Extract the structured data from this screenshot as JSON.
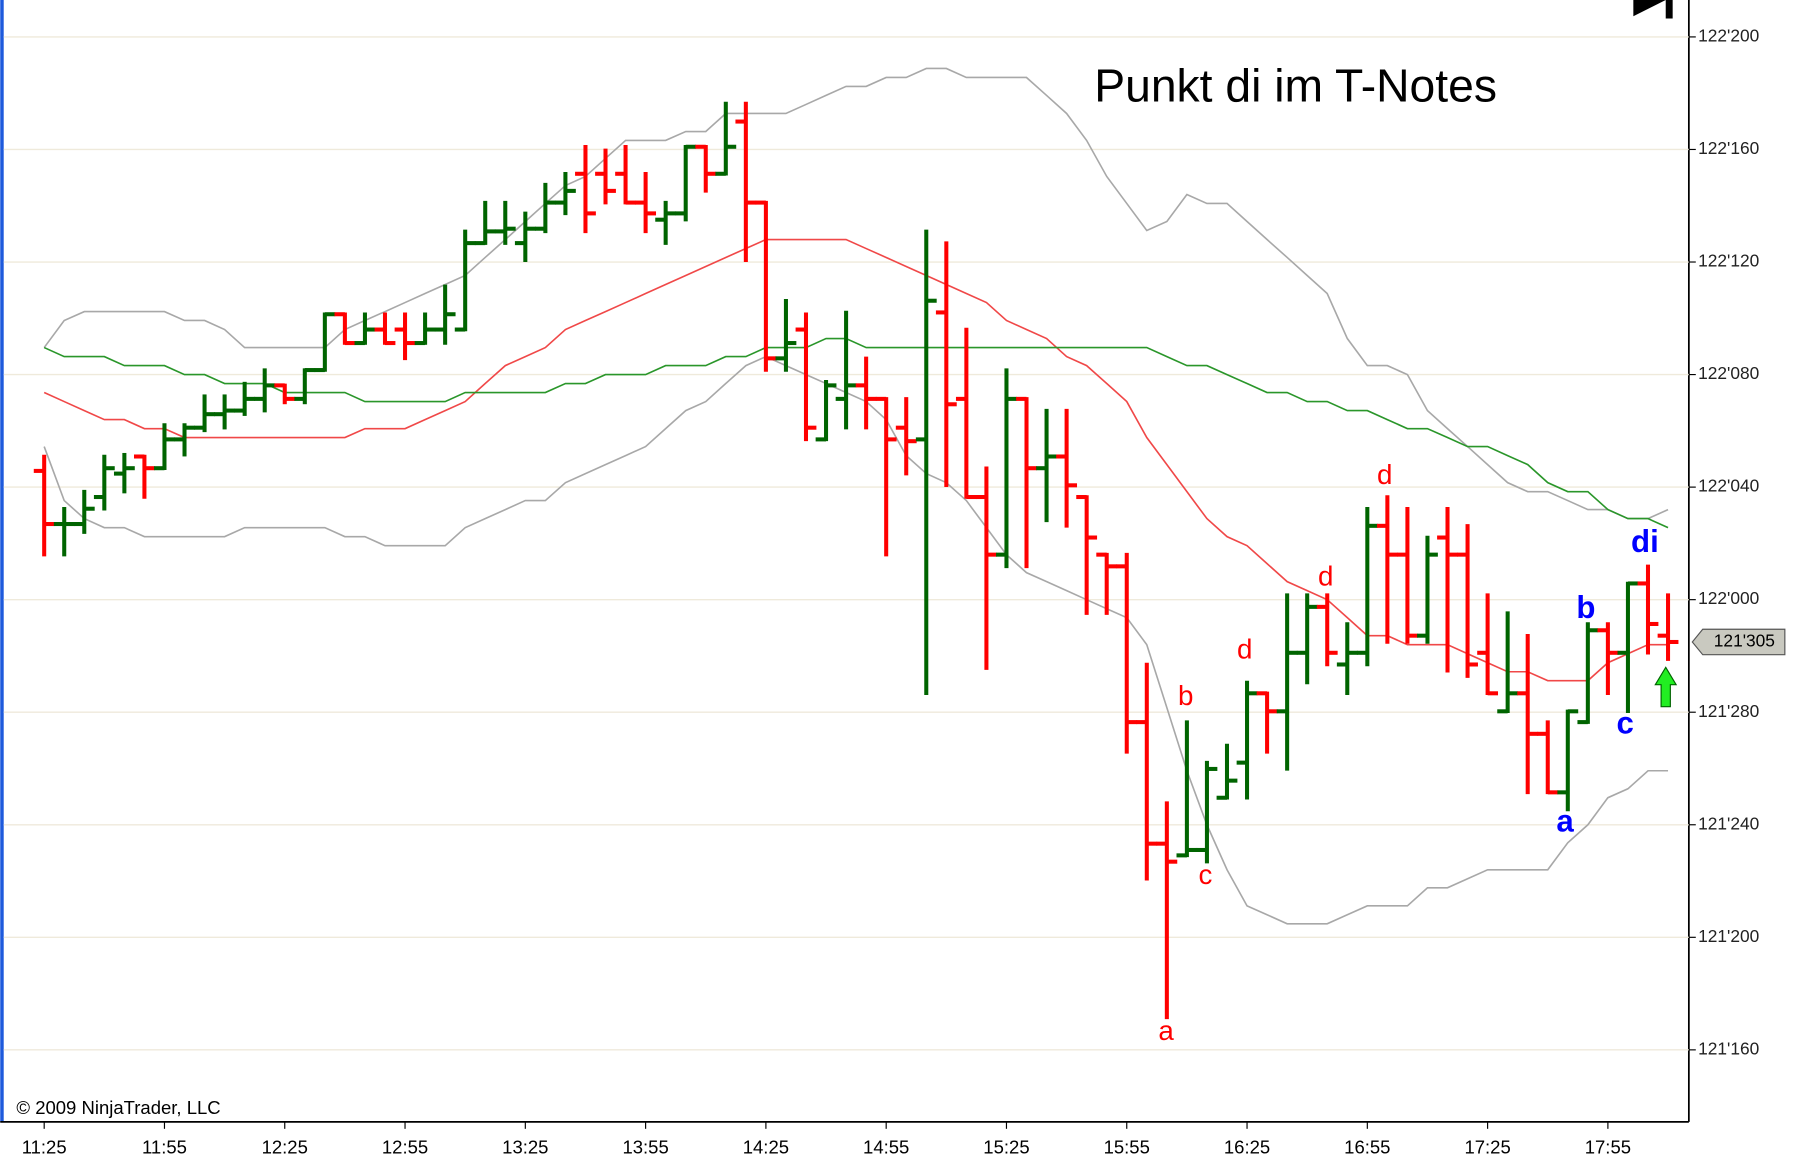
{
  "chart_data": {
    "type": "ohlc",
    "title": "Punkt di im T-Notes",
    "copyright": "© 2009 NinjaTrader, LLC",
    "up_color": "#006400",
    "down_color": "#ff0000",
    "grid": true,
    "ylim": [
      121.42,
      122.666
    ],
    "yticks": [
      {
        "value": 122.625,
        "label": "122'200"
      },
      {
        "value": 122.5,
        "label": "122'160"
      },
      {
        "value": 122.375,
        "label": "122'120"
      },
      {
        "value": 122.25,
        "label": "122'080"
      },
      {
        "value": 122.125,
        "label": "122'040"
      },
      {
        "value": 122,
        "label": "122'000"
      },
      {
        "value": 121.875,
        "label": "121'280"
      },
      {
        "value": 121.75,
        "label": "121'240"
      },
      {
        "value": 121.625,
        "label": "121'200"
      },
      {
        "value": 121.5,
        "label": "121'160"
      }
    ],
    "last_price": {
      "value": 121.953,
      "label": "121'305"
    },
    "categories": [
      "11:25",
      null,
      null,
      null,
      null,
      null,
      "11:55",
      null,
      null,
      null,
      null,
      null,
      "12:25",
      null,
      null,
      null,
      null,
      null,
      "12:55",
      null,
      null,
      null,
      null,
      null,
      "13:25",
      null,
      null,
      null,
      null,
      null,
      "13:55",
      null,
      null,
      null,
      null,
      null,
      "14:25",
      null,
      null,
      null,
      null,
      null,
      "14:55",
      null,
      null,
      null,
      null,
      null,
      "15:25",
      null,
      null,
      null,
      null,
      null,
      "15:55",
      null,
      null,
      null,
      null,
      null,
      "16:25",
      null,
      null,
      null,
      null,
      null,
      "16:55",
      null,
      null,
      null,
      null,
      null,
      "17:25",
      null,
      null,
      null,
      null,
      null,
      "17:55",
      null,
      null,
      null
    ],
    "ohlc": {
      "open": [
        122.143,
        122.084,
        122.084,
        122.114,
        122.14,
        122.159,
        122.146,
        122.178,
        122.191,
        122.206,
        122.21,
        122.223,
        122.238,
        122.223,
        122.255,
        122.317,
        122.285,
        122.3,
        122.3,
        122.285,
        122.3,
        122.3,
        122.396,
        122.409,
        122.396,
        122.412,
        122.441,
        122.473,
        122.473,
        122.473,
        122.441,
        122.422,
        122.429,
        122.503,
        122.473,
        122.531,
        122.441,
        122.268,
        122.3,
        122.178,
        122.223,
        122.238,
        122.223,
        122.191,
        122.178,
        122.319,
        122.223,
        122.114,
        122.05,
        122.223,
        122.146,
        122.159,
        122.114,
        122.05,
        122.037,
        121.864,
        121.729,
        121.716,
        121.722,
        121.78,
        121.819,
        121.896,
        121.876,
        121.941,
        121.992,
        121.928,
        121.941,
        122.082,
        122.05,
        121.96,
        122.069,
        122.05,
        121.941,
        121.876,
        121.896,
        121.851,
        121.786,
        121.864,
        121.966,
        121.941,
        122.018,
        121.96
      ],
      "high": [
        122.159,
        122.101,
        122.12,
        122.159,
        122.161,
        122.159,
        122.194,
        122.194,
        122.226,
        122.226,
        122.24,
        122.255,
        122.238,
        122.255,
        122.317,
        122.317,
        122.317,
        122.317,
        122.317,
        122.317,
        122.348,
        122.409,
        122.441,
        122.441,
        122.429,
        122.461,
        122.473,
        122.503,
        122.499,
        122.503,
        122.473,
        122.441,
        122.503,
        122.503,
        122.551,
        122.551,
        122.441,
        122.332,
        122.317,
        122.242,
        122.319,
        122.268,
        122.223,
        122.223,
        122.409,
        122.396,
        122.3,
        122.146,
        122.255,
        122.223,
        122.21,
        122.21,
        122.114,
        122.05,
        122.05,
        121.928,
        121.774,
        121.864,
        121.819,
        121.838,
        121.908,
        121.896,
        122.005,
        122.005,
        122.005,
        121.973,
        122.101,
        122.114,
        122.101,
        122.069,
        122.101,
        122.082,
        122.005,
        121.985,
        121.96,
        121.864,
        121.876,
        121.973,
        121.973,
        122.018,
        122.037,
        122.005
      ],
      "low": [
        122.05,
        122.05,
        122.075,
        122.101,
        122.12,
        122.114,
        122.146,
        122.161,
        122.188,
        122.191,
        122.206,
        122.21,
        122.219,
        122.219,
        122.255,
        122.285,
        122.285,
        122.285,
        122.268,
        122.285,
        122.285,
        122.3,
        122.396,
        122.396,
        122.377,
        122.409,
        122.429,
        122.409,
        122.441,
        122.441,
        122.409,
        122.396,
        122.422,
        122.454,
        122.473,
        122.377,
        122.255,
        122.255,
        122.178,
        122.178,
        122.191,
        122.191,
        122.05,
        122.14,
        121.896,
        122.127,
        122.114,
        121.924,
        122.037,
        122.037,
        122.088,
        122.082,
        121.985,
        121.985,
        121.831,
        121.69,
        121.536,
        121.716,
        121.709,
        121.78,
        121.78,
        121.831,
        121.812,
        121.908,
        121.928,
        121.896,
        121.928,
        121.953,
        121.953,
        121.953,
        121.921,
        121.915,
        121.896,
        121.876,
        121.786,
        121.786,
        121.767,
        121.864,
        121.896,
        121.876,
        121.941,
        121.934
      ],
      "close": [
        122.084,
        122.084,
        122.101,
        122.146,
        122.146,
        122.146,
        122.178,
        122.191,
        122.206,
        122.21,
        122.223,
        122.238,
        122.223,
        122.255,
        122.317,
        122.285,
        122.3,
        122.285,
        122.285,
        122.3,
        122.317,
        122.396,
        122.409,
        122.412,
        122.412,
        122.441,
        122.454,
        122.429,
        122.454,
        122.441,
        122.429,
        122.429,
        122.503,
        122.473,
        122.503,
        122.441,
        122.268,
        122.285,
        122.191,
        122.238,
        122.238,
        122.223,
        122.178,
        122.176,
        122.332,
        122.217,
        122.114,
        122.05,
        122.223,
        122.146,
        122.159,
        122.127,
        122.069,
        122.037,
        121.864,
        121.729,
        121.709,
        121.722,
        121.812,
        121.799,
        121.896,
        121.876,
        121.941,
        121.992,
        121.941,
        121.941,
        122.082,
        122.05,
        121.96,
        122.05,
        122.05,
        121.928,
        121.896,
        121.896,
        121.851,
        121.786,
        121.876,
        121.966,
        121.941,
        122.018,
        121.973,
        121.953
      ]
    },
    "overlays": [
      {
        "color": "#a8a8a8",
        "values": [
          122.28,
          122.31,
          122.32,
          122.32,
          122.32,
          122.32,
          122.32,
          122.31,
          122.31,
          122.3,
          122.28,
          122.28,
          122.28,
          122.28,
          122.28,
          122.3,
          122.31,
          122.32,
          122.33,
          122.34,
          122.35,
          122.36,
          122.38,
          122.4,
          122.42,
          122.44,
          122.46,
          122.47,
          122.49,
          122.51,
          122.51,
          122.51,
          122.52,
          122.52,
          122.54,
          122.54,
          122.54,
          122.54,
          122.55,
          122.56,
          122.57,
          122.57,
          122.58,
          122.58,
          122.59,
          122.59,
          122.58,
          122.58,
          122.58,
          122.58,
          122.56,
          122.54,
          122.51,
          122.47,
          122.44,
          122.41,
          122.42,
          122.45,
          122.44,
          122.44,
          122.42,
          122.4,
          122.38,
          122.36,
          122.34,
          122.29,
          122.26,
          122.26,
          122.25,
          122.21,
          122.19,
          122.17,
          122.15,
          122.13,
          122.12,
          122.12,
          122.11,
          122.1,
          122.1,
          122.09,
          122.09,
          122.1
        ]
      },
      {
        "color": "#a8a8a8",
        "values": [
          122.17,
          122.11,
          122.09,
          122.08,
          122.08,
          122.07,
          122.07,
          122.07,
          122.07,
          122.07,
          122.08,
          122.08,
          122.08,
          122.08,
          122.08,
          122.07,
          122.07,
          122.06,
          122.06,
          122.06,
          122.06,
          122.08,
          122.09,
          122.1,
          122.11,
          122.11,
          122.13,
          122.14,
          122.15,
          122.16,
          122.17,
          122.19,
          122.21,
          122.22,
          122.24,
          122.26,
          122.27,
          122.26,
          122.25,
          122.24,
          122.23,
          122.22,
          122.2,
          122.16,
          122.14,
          122.13,
          122.11,
          122.08,
          122.05,
          122.03,
          122.02,
          122.01,
          122.0,
          121.99,
          121.98,
          121.95,
          121.88,
          121.81,
          121.75,
          121.7,
          121.66,
          121.65,
          121.64,
          121.64,
          121.64,
          121.65,
          121.66,
          121.66,
          121.66,
          121.68,
          121.68,
          121.69,
          121.7,
          121.7,
          121.7,
          121.7,
          121.73,
          121.75,
          121.78,
          121.79,
          121.81,
          121.81
        ]
      },
      {
        "color": "#f04848",
        "values": [
          122.23,
          122.22,
          122.21,
          122.2,
          122.2,
          122.19,
          122.19,
          122.18,
          122.18,
          122.18,
          122.18,
          122.18,
          122.18,
          122.18,
          122.18,
          122.18,
          122.19,
          122.19,
          122.19,
          122.2,
          122.21,
          122.22,
          122.24,
          122.26,
          122.27,
          122.28,
          122.3,
          122.31,
          122.32,
          122.33,
          122.34,
          122.35,
          122.36,
          122.37,
          122.38,
          122.39,
          122.4,
          122.4,
          122.4,
          122.4,
          122.4,
          122.39,
          122.38,
          122.37,
          122.36,
          122.35,
          122.34,
          122.33,
          122.31,
          122.3,
          122.29,
          122.27,
          122.26,
          122.24,
          122.22,
          122.18,
          122.15,
          122.12,
          122.09,
          122.07,
          122.06,
          122.04,
          122.02,
          122.01,
          122.0,
          121.98,
          121.96,
          121.96,
          121.95,
          121.95,
          121.95,
          121.94,
          121.93,
          121.92,
          121.92,
          121.91,
          121.91,
          121.91,
          121.93,
          121.94,
          121.95,
          121.95
        ]
      },
      {
        "color": "#2a962a",
        "values": [
          122.28,
          122.27,
          122.27,
          122.27,
          122.26,
          122.26,
          122.26,
          122.25,
          122.25,
          122.24,
          122.24,
          122.24,
          122.23,
          122.23,
          122.23,
          122.23,
          122.22,
          122.22,
          122.22,
          122.22,
          122.22,
          122.23,
          122.23,
          122.23,
          122.23,
          122.23,
          122.24,
          122.24,
          122.25,
          122.25,
          122.25,
          122.26,
          122.26,
          122.26,
          122.27,
          122.27,
          122.28,
          122.28,
          122.28,
          122.29,
          122.29,
          122.28,
          122.28,
          122.28,
          122.28,
          122.28,
          122.28,
          122.28,
          122.28,
          122.28,
          122.28,
          122.28,
          122.28,
          122.28,
          122.28,
          122.28,
          122.27,
          122.26,
          122.26,
          122.25,
          122.24,
          122.23,
          122.23,
          122.22,
          122.22,
          122.21,
          122.21,
          122.2,
          122.19,
          122.19,
          122.18,
          122.17,
          122.17,
          122.16,
          122.15,
          122.13,
          122.12,
          122.12,
          122.1,
          122.09,
          122.09,
          122.08
        ]
      }
    ],
    "annotations": [
      {
        "text": "a",
        "color": "#ff0000"
      },
      {
        "text": "b",
        "color": "#ff0000"
      },
      {
        "text": "c",
        "color": "#ff0000"
      },
      {
        "text": "d",
        "color": "#ff0000"
      },
      {
        "text": "d",
        "color": "#ff0000"
      },
      {
        "text": "d",
        "color": "#ff0000"
      },
      {
        "text": "a",
        "color": "#0000ff"
      },
      {
        "text": "b",
        "color": "#0000ff"
      },
      {
        "text": "c",
        "color": "#0000ff"
      },
      {
        "text": "di",
        "color": "#0000ff"
      }
    ]
  }
}
